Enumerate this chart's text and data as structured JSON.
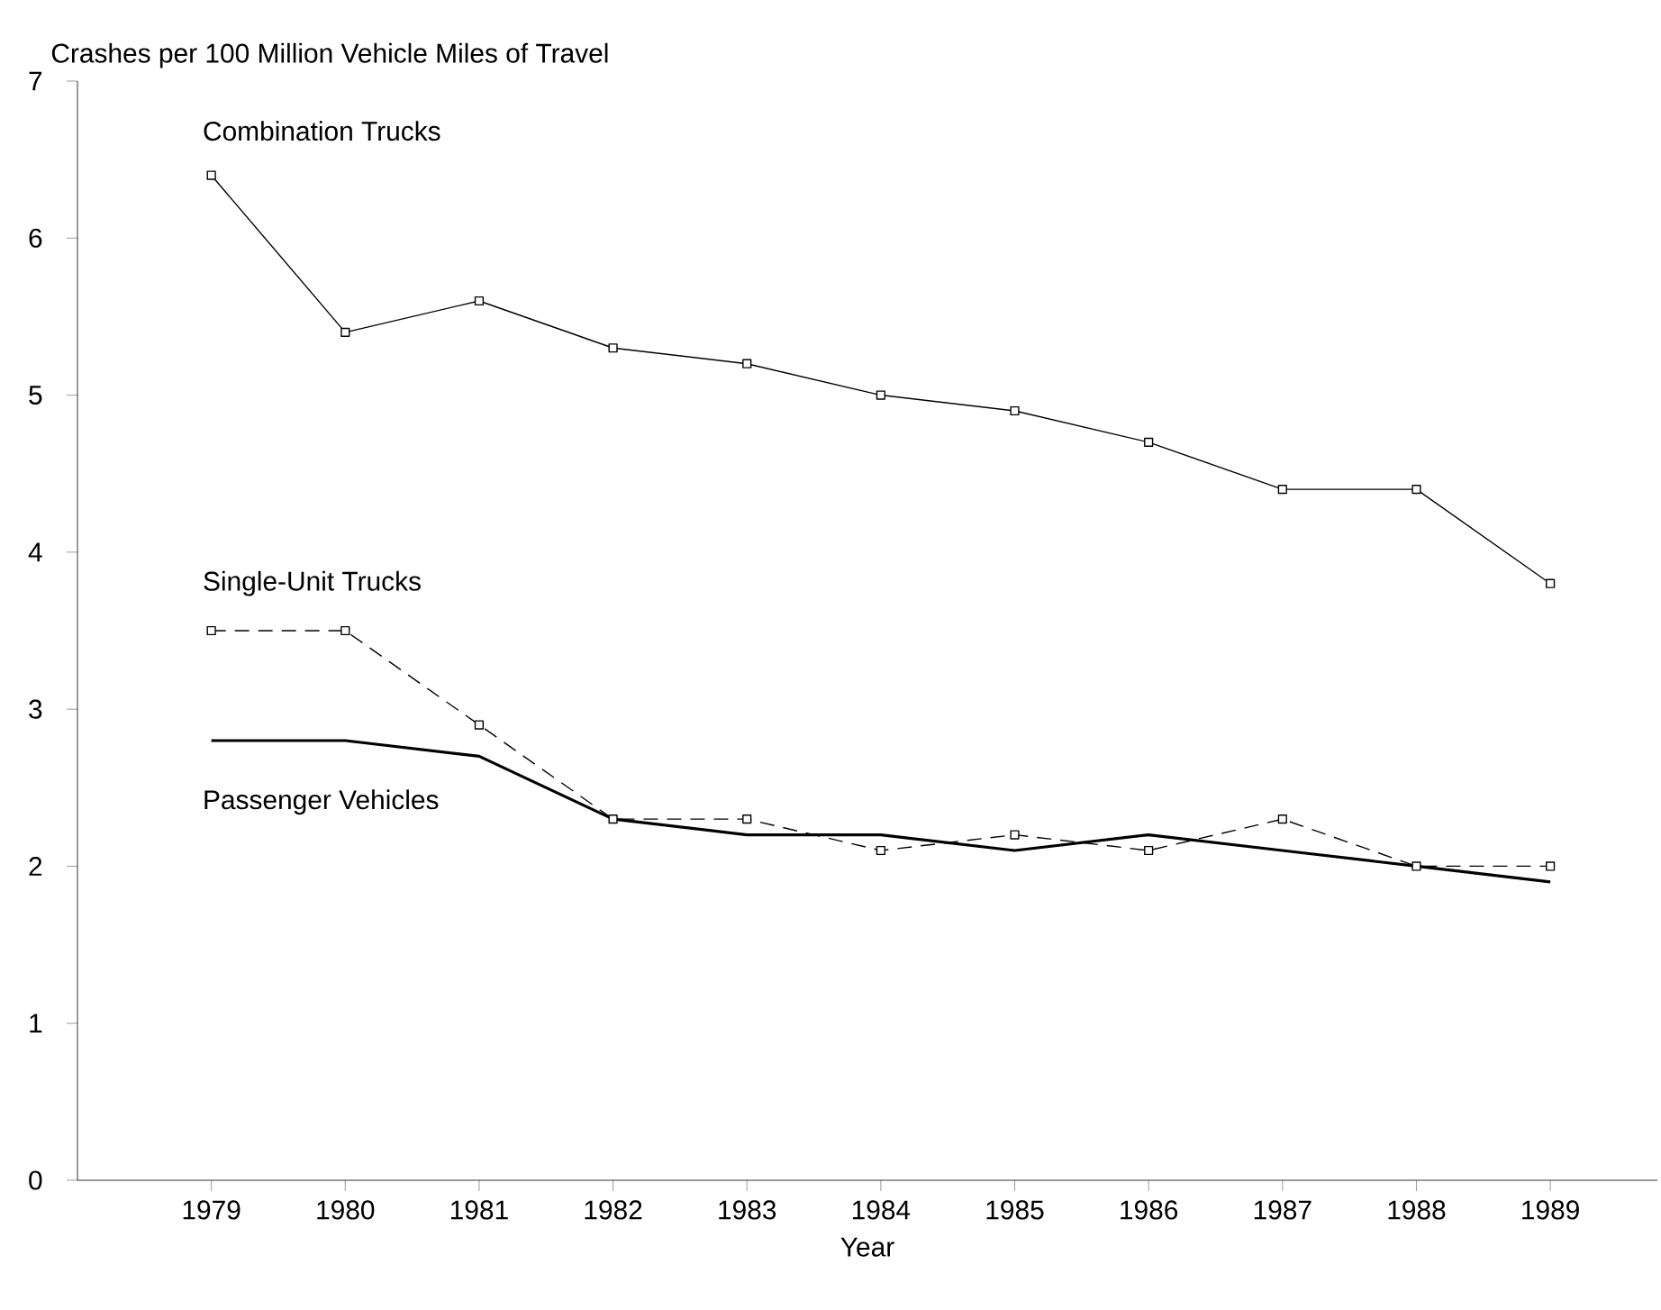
{
  "chart_data": {
    "type": "line",
    "ylabel": "Crashes per 100 Million Vehicle Miles of Travel",
    "xlabel": "Year",
    "x": [
      1979,
      1980,
      1981,
      1982,
      1983,
      1984,
      1985,
      1986,
      1987,
      1988,
      1989
    ],
    "xlim": [
      1978,
      1989.8
    ],
    "xticks": [
      1979,
      1980,
      1981,
      1982,
      1983,
      1984,
      1985,
      1986,
      1987,
      1988,
      1989
    ],
    "ylim": [
      0,
      7
    ],
    "yticks": [
      0,
      1,
      2,
      3,
      4,
      5,
      6,
      7
    ],
    "grid": false,
    "legend": false,
    "series": [
      {
        "name": "Combination Trucks",
        "color": "#000000",
        "marker": "square",
        "line_style": "solid",
        "values": [
          6.4,
          5.4,
          5.6,
          5.3,
          5.2,
          5.0,
          4.9,
          4.7,
          4.4,
          4.4,
          3.8
        ]
      },
      {
        "name": "Single-Unit Trucks",
        "color": "#000000",
        "marker": "square",
        "line_style": "dashed",
        "values": [
          3.5,
          3.5,
          2.9,
          2.3,
          2.3,
          2.1,
          2.2,
          2.1,
          2.3,
          2.0,
          2.0
        ]
      },
      {
        "name": "Passenger Vehicles",
        "color": "#000000",
        "marker": "none",
        "line_style": "solid",
        "values": [
          2.8,
          2.8,
          2.7,
          2.3,
          2.2,
          2.2,
          2.1,
          2.2,
          2.1,
          2.0,
          1.9
        ]
      }
    ]
  }
}
